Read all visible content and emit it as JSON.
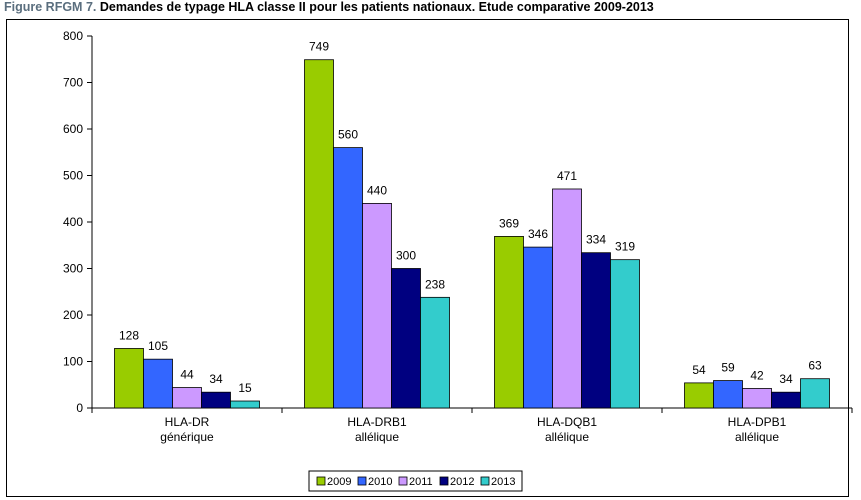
{
  "title_prefix": "Figure RFGM 7.",
  "title_text": "Demandes de typage HLA classe II pour les patients nationaux. Etude comparative 2009-2013",
  "chart_data": {
    "type": "bar",
    "categories": [
      [
        "HLA-DR",
        "générique"
      ],
      [
        "HLA-DRB1",
        "allélique"
      ],
      [
        "HLA-DQB1",
        "allélique"
      ],
      [
        "HLA-DPB1",
        "allélique"
      ]
    ],
    "series": [
      {
        "name": "2009",
        "color": "#99cc00",
        "values": [
          128,
          749,
          369,
          54
        ]
      },
      {
        "name": "2010",
        "color": "#3366ff",
        "values": [
          105,
          560,
          346,
          59
        ]
      },
      {
        "name": "2011",
        "color": "#cc99ff",
        "values": [
          44,
          440,
          471,
          42
        ]
      },
      {
        "name": "2012",
        "color": "#000080",
        "values": [
          34,
          300,
          334,
          34
        ]
      },
      {
        "name": "2013",
        "color": "#33cccc",
        "values": [
          15,
          238,
          319,
          63
        ]
      }
    ],
    "ylim": [
      0,
      800
    ],
    "yticks": [
      0,
      100,
      200,
      300,
      400,
      500,
      600,
      700,
      800
    ],
    "data_labels": true,
    "gridlines": false,
    "legend_position": "bottom"
  }
}
